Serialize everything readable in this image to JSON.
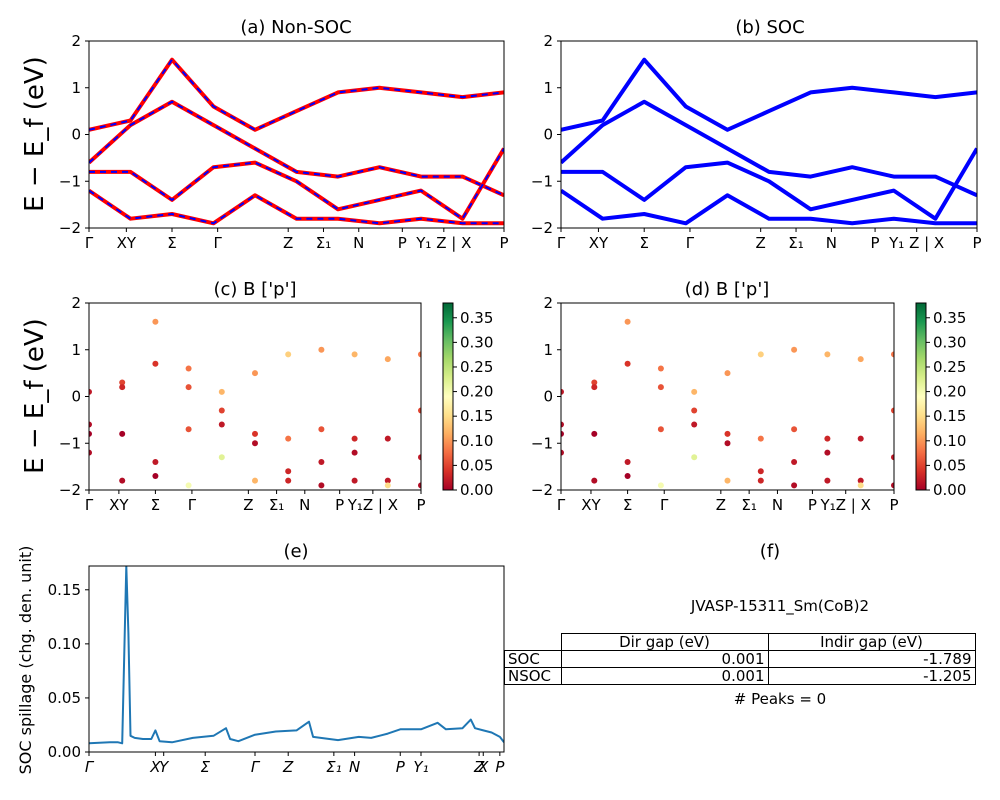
{
  "chart_data": [
    {
      "type": "line",
      "title": "(a) Non-SOC",
      "ylabel": "E − E_f (eV)",
      "ylim": [
        -2,
        2
      ],
      "yticks": [
        "2",
        "1",
        "0",
        "−1",
        "−2"
      ],
      "xticks": [
        "Γ",
        "XY",
        "Σ",
        "Γ",
        "Z",
        "Σ₁",
        "N",
        "P",
        "Y₁ Z | X",
        "P"
      ],
      "series": [
        {
          "style": "red solid with blue dashes",
          "color": "#ff0000",
          "dash_color": "#0000ff",
          "x": [
            0,
            0.1,
            0.2,
            0.3,
            0.4,
            0.5,
            0.6,
            0.7,
            0.8,
            0.9,
            1.0
          ],
          "y": [
            0.1,
            0.3,
            1.6,
            0.6,
            0.1,
            0.5,
            0.9,
            1.0,
            0.9,
            0.8,
            0.9
          ]
        },
        {
          "style": "red solid with blue dashes",
          "color": "#ff0000",
          "dash_color": "#0000ff",
          "x": [
            0,
            0.1,
            0.2,
            0.3,
            0.4,
            0.5,
            0.6,
            0.7,
            0.8,
            0.9,
            1.0
          ],
          "y": [
            -0.6,
            0.2,
            0.7,
            0.2,
            -0.3,
            -0.8,
            -0.9,
            -0.7,
            -0.9,
            -0.9,
            -1.3
          ]
        },
        {
          "style": "red solid with blue dashes",
          "color": "#ff0000",
          "dash_color": "#0000ff",
          "x": [
            0,
            0.1,
            0.2,
            0.3,
            0.4,
            0.5,
            0.6,
            0.7,
            0.8,
            0.9,
            1.0
          ],
          "y": [
            -0.8,
            -0.8,
            -1.4,
            -0.7,
            -0.6,
            -1.0,
            -1.6,
            -1.4,
            -1.2,
            -1.8,
            -0.3
          ]
        },
        {
          "style": "red solid with blue dashes",
          "color": "#ff0000",
          "dash_color": "#0000ff",
          "x": [
            0,
            0.1,
            0.2,
            0.3,
            0.4,
            0.5,
            0.6,
            0.7,
            0.8,
            0.9,
            1.0
          ],
          "y": [
            -1.2,
            -1.8,
            -1.7,
            -1.9,
            -1.3,
            -1.8,
            -1.8,
            -1.9,
            -1.8,
            -1.9,
            -1.9
          ]
        }
      ]
    },
    {
      "type": "line",
      "title": "(b) SOC",
      "ylim": [
        -2,
        2
      ],
      "yticks": [
        "2",
        "1",
        "0",
        "−1",
        "−2"
      ],
      "xticks": [
        "Γ",
        "XY",
        "Σ",
        "Γ",
        "Z",
        "Σ₁",
        "N",
        "P",
        "Y₁ Z | X",
        "P"
      ],
      "series": [
        {
          "style": "blue solid",
          "color": "#0000ff",
          "x": [
            0,
            0.1,
            0.2,
            0.3,
            0.4,
            0.5,
            0.6,
            0.7,
            0.8,
            0.9,
            1.0
          ],
          "y": [
            0.1,
            0.3,
            1.6,
            0.6,
            0.1,
            0.5,
            0.9,
            1.0,
            0.9,
            0.8,
            0.9
          ]
        },
        {
          "style": "blue solid",
          "color": "#0000ff",
          "x": [
            0,
            0.1,
            0.2,
            0.3,
            0.4,
            0.5,
            0.6,
            0.7,
            0.8,
            0.9,
            1.0
          ],
          "y": [
            -0.6,
            0.2,
            0.7,
            0.2,
            -0.3,
            -0.8,
            -0.9,
            -0.7,
            -0.9,
            -0.9,
            -1.3
          ]
        },
        {
          "style": "blue solid",
          "color": "#0000ff",
          "x": [
            0,
            0.1,
            0.2,
            0.3,
            0.4,
            0.5,
            0.6,
            0.7,
            0.8,
            0.9,
            1.0
          ],
          "y": [
            -0.8,
            -0.8,
            -1.4,
            -0.7,
            -0.6,
            -1.0,
            -1.6,
            -1.4,
            -1.2,
            -1.8,
            -0.3
          ]
        },
        {
          "style": "blue solid",
          "color": "#0000ff",
          "x": [
            0,
            0.1,
            0.2,
            0.3,
            0.4,
            0.5,
            0.6,
            0.7,
            0.8,
            0.9,
            1.0
          ],
          "y": [
            -1.2,
            -1.8,
            -1.7,
            -1.9,
            -1.3,
            -1.8,
            -1.8,
            -1.9,
            -1.8,
            -1.9,
            -1.9
          ]
        }
      ]
    },
    {
      "type": "scatter",
      "title": "(c)  B ['p']",
      "ylabel": "E − E_f (eV)",
      "ylim": [
        -2,
        2
      ],
      "yticks": [
        "2",
        "1",
        "0",
        "−1",
        "−2"
      ],
      "xticks": [
        "Γ",
        "XY",
        "Σ",
        "Γ",
        "Z",
        "Σ₁",
        "N",
        "P",
        "Y₁Z | X",
        "P"
      ],
      "colorbar": {
        "colormap": "RdYlGn",
        "range": [
          0,
          0.38
        ],
        "ticks": [
          "0.35",
          "0.30",
          "0.25",
          "0.20",
          "0.15",
          "0.10",
          "0.05",
          "0.00"
        ]
      },
      "series": [
        {
          "x": [
            0,
            0.1,
            0.2,
            0.3,
            0.4,
            0.5,
            0.6,
            0.7,
            0.8,
            0.9,
            1.0
          ],
          "y": [
            0.1,
            0.3,
            1.6,
            0.6,
            0.1,
            0.5,
            0.9,
            1.0,
            0.9,
            0.8,
            0.9
          ],
          "weight": [
            0.02,
            0.05,
            0.1,
            0.08,
            0.12,
            0.1,
            0.14,
            0.1,
            0.12,
            0.11,
            0.08
          ]
        },
        {
          "x": [
            0,
            0.1,
            0.2,
            0.3,
            0.4,
            0.5,
            0.6,
            0.7,
            0.8,
            0.9,
            1.0
          ],
          "y": [
            -0.6,
            0.2,
            0.7,
            0.2,
            -0.3,
            -0.8,
            -0.9,
            -0.7,
            -0.9,
            -0.9,
            -1.3
          ],
          "weight": [
            0.01,
            0.03,
            0.04,
            0.06,
            0.05,
            0.04,
            0.08,
            0.06,
            0.03,
            0.02,
            0.02
          ]
        },
        {
          "x": [
            0,
            0.1,
            0.2,
            0.3,
            0.4,
            0.5,
            0.6,
            0.7,
            0.8,
            0.9,
            1.0
          ],
          "y": [
            -0.8,
            -0.8,
            -1.4,
            -0.7,
            -0.6,
            -1.0,
            -1.6,
            -1.4,
            -1.2,
            -1.8,
            -0.3
          ],
          "weight": [
            0.0,
            0.0,
            0.02,
            0.06,
            0.02,
            0.01,
            0.03,
            0.02,
            0.01,
            0.02,
            0.05
          ]
        },
        {
          "x": [
            0,
            0.1,
            0.2,
            0.3,
            0.4,
            0.5,
            0.6,
            0.7,
            0.8,
            0.9,
            1.0
          ],
          "y": [
            -1.2,
            -1.8,
            -1.7,
            -1.9,
            -1.3,
            -1.8,
            -1.8,
            -1.9,
            -1.8,
            -1.9,
            -1.9
          ],
          "weight": [
            0.01,
            0.01,
            0.0,
            0.2,
            0.22,
            0.12,
            0.03,
            0.01,
            0.02,
            0.15,
            0.01
          ]
        }
      ]
    },
    {
      "type": "scatter",
      "title": "(d) B ['p']",
      "ylim": [
        -2,
        2
      ],
      "yticks": [
        "2",
        "1",
        "0",
        "−1",
        "−2"
      ],
      "xticks": [
        "Γ",
        "XY",
        "Σ",
        "Γ",
        "Z",
        "Σ₁",
        "N",
        "P",
        "Y₁Z | X",
        "P"
      ],
      "colorbar": {
        "colormap": "RdYlGn",
        "range": [
          0,
          0.38
        ],
        "ticks": [
          "0.35",
          "0.30",
          "0.25",
          "0.20",
          "0.15",
          "0.10",
          "0.05",
          "0.00"
        ]
      },
      "series": [
        {
          "x": [
            0,
            0.1,
            0.2,
            0.3,
            0.4,
            0.5,
            0.6,
            0.7,
            0.8,
            0.9,
            1.0
          ],
          "y": [
            0.1,
            0.3,
            1.6,
            0.6,
            0.1,
            0.5,
            0.9,
            1.0,
            0.9,
            0.8,
            0.9
          ],
          "weight": [
            0.02,
            0.05,
            0.1,
            0.08,
            0.12,
            0.1,
            0.14,
            0.1,
            0.12,
            0.11,
            0.08
          ]
        },
        {
          "x": [
            0,
            0.1,
            0.2,
            0.3,
            0.4,
            0.5,
            0.6,
            0.7,
            0.8,
            0.9,
            1.0
          ],
          "y": [
            -0.6,
            0.2,
            0.7,
            0.2,
            -0.3,
            -0.8,
            -0.9,
            -0.7,
            -0.9,
            -0.9,
            -1.3
          ],
          "weight": [
            0.01,
            0.03,
            0.04,
            0.06,
            0.05,
            0.04,
            0.08,
            0.06,
            0.03,
            0.02,
            0.02
          ]
        },
        {
          "x": [
            0,
            0.1,
            0.2,
            0.3,
            0.4,
            0.5,
            0.6,
            0.7,
            0.8,
            0.9,
            1.0
          ],
          "y": [
            -0.8,
            -0.8,
            -1.4,
            -0.7,
            -0.6,
            -1.0,
            -1.6,
            -1.4,
            -1.2,
            -1.8,
            -0.3
          ],
          "weight": [
            0.0,
            0.0,
            0.02,
            0.06,
            0.02,
            0.01,
            0.03,
            0.02,
            0.01,
            0.02,
            0.05
          ]
        },
        {
          "x": [
            0,
            0.1,
            0.2,
            0.3,
            0.4,
            0.5,
            0.6,
            0.7,
            0.8,
            0.9,
            1.0
          ],
          "y": [
            -1.2,
            -1.8,
            -1.7,
            -1.9,
            -1.3,
            -1.8,
            -1.8,
            -1.9,
            -1.8,
            -1.9,
            -1.9
          ],
          "weight": [
            0.01,
            0.01,
            0.0,
            0.2,
            0.22,
            0.12,
            0.03,
            0.01,
            0.02,
            0.15,
            0.01
          ]
        }
      ]
    },
    {
      "type": "line",
      "title": "(e)",
      "ylabel": "SOC spillage (chg. den. unit)",
      "ylim": [
        0,
        0.172
      ],
      "yticks": [
        "0.15",
        "0.10",
        "0.05",
        "0.00"
      ],
      "xticks": [
        "Γ",
        "X",
        "Y",
        "Σ",
        "Γ",
        "Z",
        "Σ₁",
        "N",
        "P",
        "Y₁",
        "Z",
        "X",
        "P"
      ],
      "series": [
        {
          "color": "#1f77b4",
          "x": [
            0,
            0.05,
            0.07,
            0.08,
            0.09,
            0.095,
            0.1,
            0.11,
            0.13,
            0.15,
            0.16,
            0.17,
            0.2,
            0.25,
            0.3,
            0.33,
            0.34,
            0.36,
            0.4,
            0.45,
            0.5,
            0.53,
            0.54,
            0.6,
            0.65,
            0.68,
            0.72,
            0.75,
            0.8,
            0.84,
            0.86,
            0.9,
            0.92,
            0.93,
            0.95,
            0.97,
            0.99,
            1.0
          ],
          "y": [
            0.008,
            0.009,
            0.009,
            0.008,
            0.172,
            0.11,
            0.015,
            0.013,
            0.012,
            0.012,
            0.02,
            0.01,
            0.009,
            0.013,
            0.015,
            0.022,
            0.012,
            0.01,
            0.016,
            0.019,
            0.02,
            0.028,
            0.014,
            0.011,
            0.014,
            0.013,
            0.017,
            0.021,
            0.021,
            0.027,
            0.021,
            0.022,
            0.03,
            0.022,
            0.02,
            0.018,
            0.014,
            0.009
          ]
        }
      ]
    },
    {
      "type": "table",
      "title": "(f)",
      "caption": "JVASP-15311_Sm(CoB)2",
      "columns": [
        "",
        "Dir gap (eV)",
        "Indir gap (eV)"
      ],
      "rows": [
        [
          "SOC",
          "0.001",
          "-1.789"
        ],
        [
          "NSOC",
          "0.001",
          "-1.205"
        ]
      ],
      "footer": "# Peaks = 0"
    }
  ]
}
